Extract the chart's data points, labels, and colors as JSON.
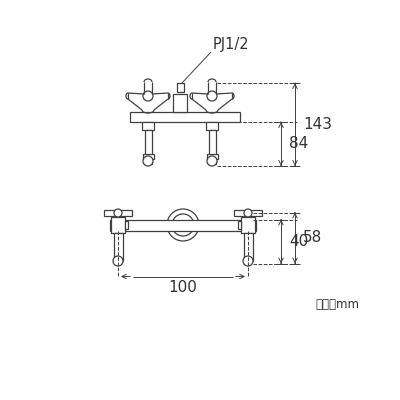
{
  "bg_color": "#ffffff",
  "line_color": "#404040",
  "dim_color": "#404040",
  "text_color": "#333333",
  "unit_text": "単位：mm",
  "pj_label": "PJ1/2",
  "dim_143": "143",
  "dim_84": "84",
  "dim_58": "58",
  "dim_40": "40",
  "dim_100": "100",
  "fig_width": 4.0,
  "fig_height": 4.0,
  "dpi": 100
}
